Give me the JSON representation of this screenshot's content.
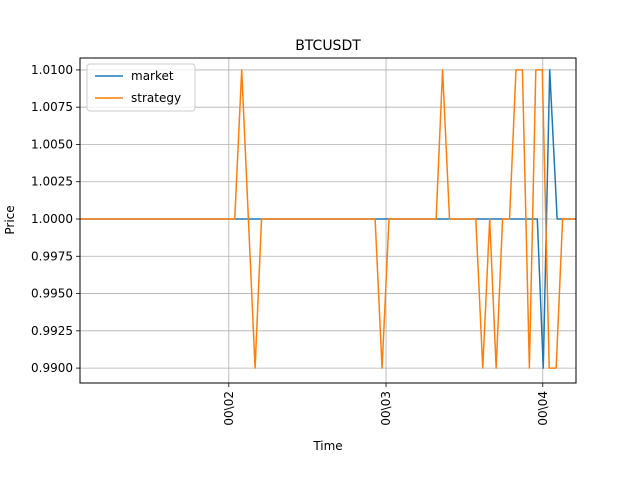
{
  "chart_data": {
    "type": "line",
    "title": "BTCUSDT",
    "xlabel": "Time",
    "ylabel": "Price",
    "xlim": [
      0,
      100
    ],
    "ylim": [
      0.989,
      1.0108
    ],
    "grid": true,
    "legend": "upper-left",
    "xticks": [
      {
        "value": 30,
        "label": "00\\02"
      },
      {
        "value": 61.7,
        "label": "00\\03"
      },
      {
        "value": 93.3,
        "label": "00\\04"
      }
    ],
    "yticks": [
      {
        "value": 0.99,
        "label": "0.9900"
      },
      {
        "value": 0.9925,
        "label": "0.9925"
      },
      {
        "value": 0.995,
        "label": "0.9950"
      },
      {
        "value": 0.9975,
        "label": "0.9975"
      },
      {
        "value": 1.0,
        "label": "1.0000"
      },
      {
        "value": 1.0025,
        "label": "1.0025"
      },
      {
        "value": 1.005,
        "label": "1.0050"
      },
      {
        "value": 1.0075,
        "label": "1.0075"
      },
      {
        "value": 1.01,
        "label": "1.0100"
      }
    ],
    "series": [
      {
        "name": "market",
        "color": "#1f77b4",
        "x": [
          0,
          29.9,
          31.2,
          32.7,
          34.1,
          35.5,
          55.3,
          58.5,
          59.8,
          61.1,
          62.5,
          63.9,
          65.2,
          66.6,
          69.8,
          72.9,
          74.5,
          75.9,
          79.1,
          80.3,
          81.7,
          83.1,
          84.5,
          85.9,
          86.3,
          88.9,
          90.4,
          91.8,
          92.2,
          93.4,
          94.7,
          96.2,
          97.6,
          99.0,
          100
        ],
        "values": [
          1.0,
          1.0,
          1.0,
          1.0,
          1.0,
          1.0,
          1.0,
          1.0,
          1.0,
          1.0,
          1.0,
          1.0,
          1.0,
          1.0,
          1.0,
          1.0,
          1.0,
          1.0,
          1.0,
          1.0,
          1.0,
          1.0,
          1.0,
          1.0,
          1.0,
          1.0,
          1.0,
          1.0,
          1.0,
          0.99,
          1.01,
          1.0,
          1.0,
          1.0,
          1.0
        ]
      },
      {
        "name": "strategy",
        "color": "#ff7f0e",
        "x": [
          0,
          31.2,
          32.6,
          35.3,
          36.6,
          38.0,
          59.5,
          60.9,
          62.3,
          63.5,
          71.8,
          73.1,
          74.5,
          79.8,
          81.2,
          82.6,
          83.9,
          85.2,
          86.6,
          87.9,
          89.2,
          90.6,
          91.9,
          93.2,
          94.6,
          96.0,
          97.3,
          100
        ],
        "values": [
          1.0,
          1.0,
          1.01,
          0.99,
          1.0,
          1.0,
          1.0,
          0.99,
          1.0,
          1.0,
          1.0,
          1.01,
          1.0,
          1.0,
          0.99,
          1.0,
          0.99,
          1.0,
          1.0,
          1.01,
          1.01,
          0.99,
          1.01,
          1.01,
          0.99,
          0.99,
          1.0,
          1.0
        ]
      }
    ]
  }
}
